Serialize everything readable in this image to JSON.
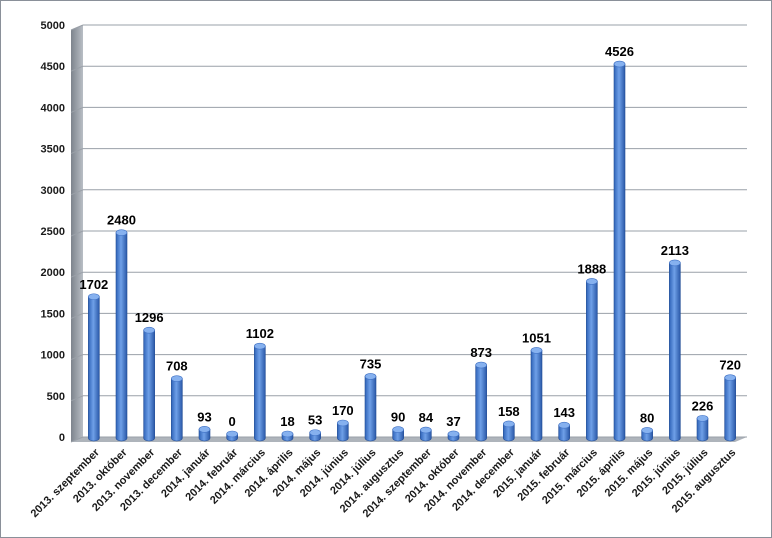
{
  "chart_data": {
    "type": "bar",
    "title": "",
    "xlabel": "",
    "ylabel": "",
    "ylim": [
      0,
      5000
    ],
    "yticks": [
      0,
      500,
      1000,
      1500,
      2000,
      2500,
      3000,
      3500,
      4000,
      4500,
      5000
    ],
    "grid": true,
    "legend": "none",
    "style": "3d-cylinder",
    "bar_color": "#4f86d6",
    "categories": [
      "2013. szeptember",
      "2013. október",
      "2013. november",
      "2013. december",
      "2014. január",
      "2014. február",
      "2014. március",
      "2014. április",
      "2014. május",
      "2014. június",
      "2014. július",
      "2014. augusztus",
      "2014. szeptember",
      "2014. október",
      "2014. november",
      "2014. december",
      "2015. január",
      "2015. február",
      "2015. március",
      "2015. április",
      "2015. május",
      "2015. június",
      "2015. július",
      "2015. augusztus"
    ],
    "values": [
      1702,
      2480,
      1296,
      708,
      93,
      0,
      1102,
      18,
      53,
      170,
      735,
      90,
      84,
      37,
      873,
      158,
      1051,
      143,
      1888,
      4526,
      80,
      2113,
      226,
      720
    ]
  }
}
